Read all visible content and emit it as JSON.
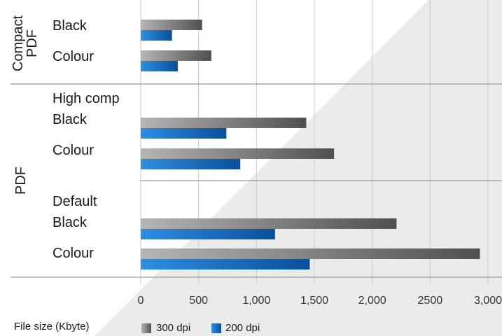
{
  "chart_data": {
    "type": "bar",
    "orientation": "horizontal",
    "xlabel": "File size (Kbyte)",
    "xlim": [
      0,
      3000
    ],
    "xticks": [
      0,
      500,
      1000,
      1500,
      2000,
      2500,
      3000
    ],
    "xtick_labels": [
      "0",
      "500",
      "1,000",
      "1,500",
      "2,000",
      "2500",
      "3,000"
    ],
    "grid": true,
    "legend_position": "bottom",
    "series": [
      {
        "name": "300 dpi",
        "color": "#5a5a5a"
      },
      {
        "name": "200 dpi",
        "color": "#0a5fb0"
      }
    ],
    "groups": [
      {
        "label_lines": [
          "Compact",
          "PDF"
        ],
        "rows": [
          {
            "label": "Black",
            "values": [
              530,
              270
            ]
          },
          {
            "label": "Colour",
            "values": [
              610,
              320
            ]
          }
        ]
      },
      {
        "label_lines": [
          "PDF"
        ],
        "subgroups": [
          {
            "label": "High comp",
            "rows": [
              {
                "label": "Black",
                "values": [
                  1430,
                  740
                ]
              },
              {
                "label": "Colour",
                "values": [
                  1670,
                  860
                ]
              }
            ]
          },
          {
            "label": "Default",
            "rows": [
              {
                "label": "Black",
                "values": [
                  2210,
                  1160
                ]
              },
              {
                "label": "Colour",
                "values": [
                  2930,
                  1460
                ]
              }
            ]
          }
        ]
      }
    ]
  }
}
